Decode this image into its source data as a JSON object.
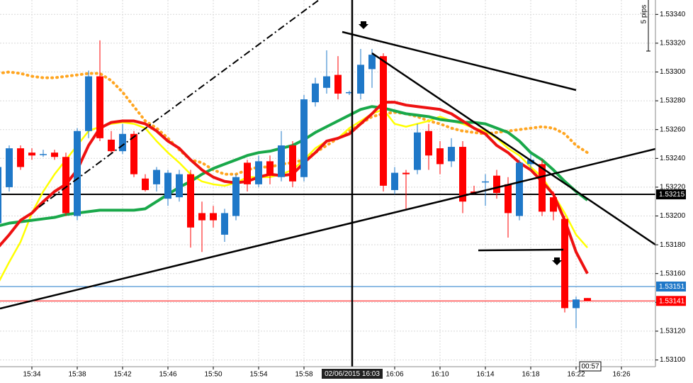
{
  "chart_data": {
    "type": "candlestick",
    "categories": [
      null,
      null,
      null,
      "15:34",
      null,
      null,
      null,
      "15:38",
      null,
      null,
      null,
      "15:42",
      null,
      null,
      null,
      "15:46",
      null,
      null,
      null,
      "15:50",
      null,
      null,
      null,
      "15:54",
      null,
      null,
      null,
      "15:58",
      null,
      null,
      null,
      null,
      null,
      null,
      null,
      "16:06",
      null,
      null,
      null,
      "16:10",
      null,
      null,
      null,
      "16:14",
      null,
      null,
      null,
      "16:18",
      null,
      null,
      null,
      "16:22",
      null,
      null,
      null,
      "16:26"
    ],
    "open": [
      1.53195,
      1.5322,
      1.53247,
      1.53244,
      1.53243,
      1.53244,
      1.53241,
      1.532,
      1.53259,
      1.53297,
      1.53253,
      1.53245,
      1.53257,
      1.53226,
      1.53222,
      1.53212,
      1.53213,
      1.53229,
      1.53202,
      1.53202,
      1.53187,
      1.532,
      1.53237,
      1.53222,
      1.53238,
      1.53227,
      1.53249,
      1.53227,
      1.53279,
      1.53289,
      1.53298,
      1.53286,
      1.53285,
      1.53302,
      1.53311,
      1.53218,
      1.5323,
      1.53232,
      1.53259,
      1.53247,
      1.53238,
      1.53248,
      1.53217,
      1.53224,
      1.53228,
      1.53222,
      1.532,
      1.53236,
      1.53236,
      1.53213,
      1.53198,
      1.53136,
      1.53143,
      null,
      null,
      null
    ],
    "high": [
      1.53239,
      1.53249,
      1.53249,
      1.53247,
      1.53246,
      1.53246,
      1.53244,
      1.53261,
      1.53301,
      1.53322,
      1.53259,
      1.53264,
      1.53259,
      1.53229,
      1.53234,
      1.53232,
      1.53232,
      1.53232,
      1.5321,
      1.53207,
      1.53205,
      1.53229,
      1.53239,
      1.53242,
      1.53242,
      1.53259,
      1.53252,
      1.53284,
      1.53296,
      1.53315,
      1.53311,
      1.53287,
      1.53316,
      1.53316,
      1.53313,
      1.53234,
      1.53232,
      1.53264,
      1.53264,
      1.53252,
      1.53254,
      1.53252,
      1.53221,
      1.53229,
      1.53232,
      1.53227,
      1.53239,
      1.53243,
      1.53239,
      1.53217,
      1.532,
      1.53144,
      1.53143,
      null,
      null,
      null
    ],
    "low": [
      1.53192,
      1.53217,
      1.53232,
      1.53239,
      1.53241,
      1.53239,
      1.532,
      1.53197,
      1.53254,
      1.53252,
      1.53243,
      1.53243,
      1.53227,
      1.53217,
      1.53217,
      1.53207,
      1.5321,
      1.53178,
      1.53175,
      1.53192,
      1.53182,
      1.53197,
      1.53217,
      1.5322,
      1.53222,
      1.53224,
      1.5322,
      1.53224,
      1.53276,
      1.53285,
      1.53281,
      1.53284,
      1.53281,
      1.53289,
      1.53217,
      1.53215,
      1.53205,
      1.53229,
      1.53232,
      1.53229,
      1.53234,
      1.53202,
      1.53215,
      1.53207,
      1.53212,
      1.53185,
      1.53197,
      1.53232,
      1.532,
      1.53197,
      1.53133,
      1.53122,
      1.53141,
      null,
      null,
      null
    ],
    "close": [
      1.53234,
      1.53247,
      1.53234,
      1.53242,
      1.53243,
      1.53241,
      1.53202,
      1.53259,
      1.53297,
      1.53254,
      1.53245,
      1.53257,
      1.53229,
      1.53218,
      1.53232,
      1.5323,
      1.53229,
      1.53192,
      1.53197,
      1.53197,
      1.53202,
      1.53227,
      1.53222,
      1.53238,
      1.53228,
      1.53249,
      1.53224,
      1.53281,
      1.53292,
      1.53297,
      1.53285,
      1.53286,
      1.53305,
      1.53312,
      1.53221,
      1.5323,
      1.53229,
      1.53258,
      1.53242,
      1.53236,
      1.53248,
      1.5321,
      1.53216,
      1.53224,
      1.53216,
      1.53202,
      1.53237,
      1.53239,
      1.53203,
      1.53203,
      1.53136,
      1.53142,
      1.53141,
      null,
      null,
      null
    ],
    "up_color": "#1f78c8",
    "down_color": "#ff0000",
    "overlays": [
      {
        "color": "#ffa520",
        "style": "dotted",
        "values": [
          1.53299,
          1.533,
          1.53299,
          1.53297,
          1.53296,
          1.53296,
          1.53297,
          1.53298,
          1.53299,
          1.53299,
          1.53294,
          1.53286,
          1.53276,
          1.53266,
          1.53261,
          1.53254,
          1.53246,
          1.53239,
          1.53237,
          1.53232,
          1.53229,
          1.53229,
          1.53232,
          1.53234,
          1.53234,
          1.53236,
          1.53237,
          1.53239,
          1.53244,
          1.53249,
          1.53254,
          1.53259,
          1.53264,
          1.53269,
          1.53271,
          1.53272,
          1.53271,
          1.53269,
          1.53266,
          1.53264,
          1.53261,
          1.53259,
          1.53258,
          1.53257,
          1.53258,
          1.53259,
          1.5326,
          1.53261,
          1.53262,
          1.53261,
          1.53257,
          1.53249,
          1.53244,
          null,
          null,
          null
        ]
      },
      {
        "color": "#ffff00",
        "style": "solid",
        "values": [
          1.53153,
          1.53168,
          1.53182,
          1.53202,
          1.53217,
          1.53229,
          1.53239,
          1.53249,
          1.53259,
          1.53262,
          1.53264,
          1.53265,
          1.53264,
          1.53261,
          1.53252,
          1.53244,
          1.53237,
          1.53229,
          1.53224,
          1.53222,
          1.53221,
          1.53223,
          1.53227,
          1.53227,
          1.53227,
          1.53229,
          1.53232,
          1.53239,
          1.53247,
          1.53252,
          1.53254,
          1.53261,
          1.53266,
          1.53271,
          1.53274,
          1.53264,
          1.53262,
          1.53264,
          1.53266,
          1.53269,
          1.53266,
          1.53264,
          1.53261,
          1.53259,
          1.53254,
          1.53247,
          1.53242,
          1.53234,
          1.53227,
          1.53215,
          1.53202,
          1.53187,
          1.53178,
          null,
          null,
          null
        ]
      },
      {
        "color": "#19a84a",
        "style": "thick",
        "values": [
          1.53193,
          1.53195,
          1.53196,
          1.53197,
          1.53198,
          1.53199,
          1.53201,
          1.53202,
          1.53203,
          1.53204,
          1.53204,
          1.53204,
          1.53204,
          1.53205,
          1.5321,
          1.53215,
          1.5322,
          1.53224,
          1.53229,
          1.53233,
          1.53236,
          1.53239,
          1.53242,
          1.53244,
          1.53245,
          1.53247,
          1.53249,
          1.53253,
          1.53258,
          1.53262,
          1.53266,
          1.5327,
          1.53274,
          1.53276,
          1.53275,
          1.53273,
          1.53271,
          1.5327,
          1.53269,
          1.53267,
          1.53266,
          1.53265,
          1.53265,
          1.53264,
          1.53261,
          1.53258,
          1.53252,
          1.53244,
          1.53239,
          1.53232,
          1.53224,
          1.53217,
          1.53211,
          null,
          null,
          null
        ]
      },
      {
        "color": "#ee1111",
        "style": "thick",
        "values": [
          1.53178,
          1.53187,
          1.53197,
          1.53202,
          1.5321,
          1.53217,
          1.53222,
          1.53232,
          1.53249,
          1.53261,
          1.53265,
          1.53266,
          1.53266,
          1.53264,
          1.53259,
          1.53252,
          1.53247,
          1.53239,
          1.53232,
          1.53227,
          1.53224,
          1.53223,
          1.53224,
          1.53227,
          1.53229,
          1.53228,
          1.53229,
          1.53237,
          1.53244,
          1.53252,
          1.53254,
          1.53257,
          1.53264,
          1.53271,
          1.53279,
          1.53279,
          1.53277,
          1.53276,
          1.53275,
          1.53274,
          1.53271,
          1.53266,
          1.53261,
          1.53257,
          1.53249,
          1.53244,
          1.53237,
          1.53232,
          1.53224,
          1.53215,
          1.53197,
          1.53175,
          1.5316,
          null,
          null,
          null
        ]
      }
    ],
    "ylim": [
      1.53084,
      1.5335
    ],
    "yticks": [
      {
        "value": 1.531,
        "label": "1.53100"
      },
      {
        "value": 1.5312,
        "label": "1.53120"
      },
      {
        "value": 1.5314,
        "label": "1.53140"
      },
      {
        "value": 1.5316,
        "label": "1.53160"
      },
      {
        "value": 1.5318,
        "label": "1.53180"
      },
      {
        "value": 1.532,
        "label": "1.53200"
      },
      {
        "value": 1.5322,
        "label": "1.53220"
      },
      {
        "value": 1.5324,
        "label": "1.53240"
      },
      {
        "value": 1.5326,
        "label": "1.53260"
      },
      {
        "value": 1.5328,
        "label": "1.53280"
      },
      {
        "value": 1.533,
        "label": "1.53300"
      },
      {
        "value": 1.5332,
        "label": "1.53320"
      },
      {
        "value": 1.5334,
        "label": "1.53340"
      }
    ],
    "grid": true,
    "price_lines": [
      {
        "value": 1.53215,
        "label": "1.53215",
        "color": "#000000"
      },
      {
        "value": 1.53151,
        "label": "1.53151",
        "color": "#1f78c8"
      },
      {
        "value": 1.53141,
        "label": "1.53141",
        "color": "#ff0000"
      }
    ],
    "crosshair_label": "02/06/2015 16:03",
    "scale_label": "5 pips",
    "countdown": "00:57"
  }
}
